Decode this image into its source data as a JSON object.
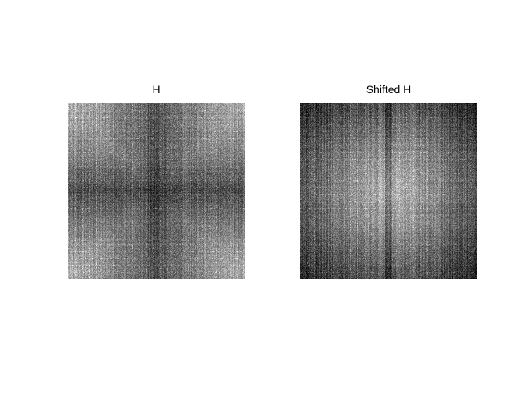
{
  "figure": {
    "background": "#ffffff",
    "panels": [
      {
        "title": "H",
        "content": "fft-magnitude-unshifted",
        "colormap": "gray"
      },
      {
        "title": "Shifted H",
        "content": "fft-magnitude-centered",
        "colormap": "gray"
      }
    ]
  }
}
